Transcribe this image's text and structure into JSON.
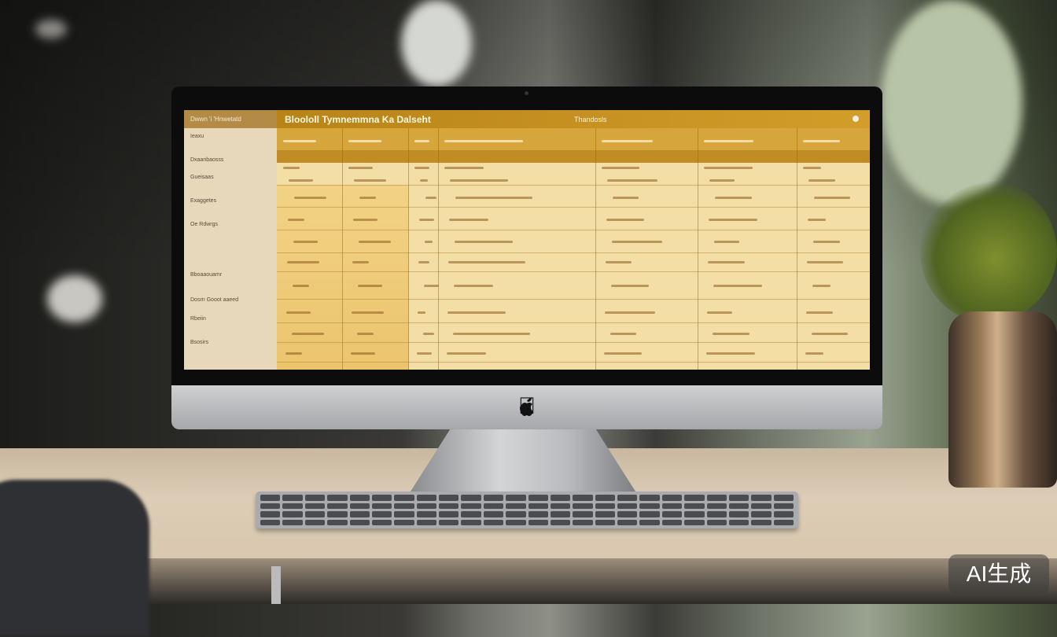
{
  "screen": {
    "sidebar_header": "Dwwn 'i 'Hnwetatd",
    "sidebar_items": [
      "Ieaxu",
      "Dxaanbaosss",
      "Gueisaas",
      "Exaggetes",
      "Oe Rdwrgs",
      "Bboaaouamr",
      "Dosrn Gooot aaeed",
      "Rbeiin",
      "Bsosirs"
    ],
    "title": "Bloololl Tymnemmna Ka Dalseht",
    "center_header": "Thandosls",
    "accent_color": "#d39d2a"
  },
  "watermark": "AI生成"
}
